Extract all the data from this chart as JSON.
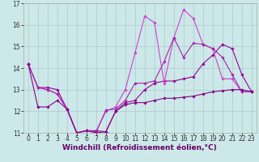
{
  "xlabel": "Windchill (Refroidissement éolien,°C)",
  "background_color": "#cce8e8",
  "grid_color": "#aacccc",
  "line_colors": [
    "#990099",
    "#cc44cc",
    "#aa22aa",
    "#880088"
  ],
  "xlim": [
    -0.5,
    23.5
  ],
  "ylim": [
    11,
    17
  ],
  "yticks": [
    11,
    12,
    13,
    14,
    15,
    16,
    17
  ],
  "xticks": [
    0,
    1,
    2,
    3,
    4,
    5,
    6,
    7,
    8,
    9,
    10,
    11,
    12,
    13,
    14,
    15,
    16,
    17,
    18,
    19,
    20,
    21,
    22,
    23
  ],
  "series": [
    {
      "x": [
        0,
        1,
        2,
        3,
        4,
        5,
        6,
        7,
        8,
        9,
        10,
        11,
        12,
        13,
        14,
        15,
        16,
        17,
        18,
        19,
        20,
        21,
        22,
        23
      ],
      "y": [
        14.2,
        13.1,
        13.1,
        13.0,
        12.1,
        11.0,
        11.1,
        11.1,
        11.05,
        12.0,
        12.4,
        12.5,
        13.0,
        13.3,
        13.4,
        13.4,
        13.5,
        13.6,
        14.2,
        14.6,
        15.1,
        14.9,
        13.7,
        12.9
      ]
    },
    {
      "x": [
        0,
        1,
        2,
        3,
        4,
        5,
        6,
        7,
        8,
        9,
        10,
        11,
        12,
        13,
        14,
        15,
        16,
        17,
        18,
        19,
        20,
        21,
        22,
        23
      ],
      "y": [
        14.2,
        13.1,
        13.0,
        12.8,
        12.1,
        11.0,
        11.1,
        11.05,
        12.0,
        12.2,
        13.0,
        14.7,
        16.4,
        16.1,
        13.3,
        15.4,
        16.7,
        16.3,
        15.1,
        14.9,
        13.5,
        13.5,
        12.9,
        12.9
      ]
    },
    {
      "x": [
        0,
        1,
        2,
        3,
        4,
        5,
        6,
        7,
        8,
        9,
        10,
        11,
        12,
        13,
        14,
        15,
        16,
        17,
        18,
        19,
        20,
        21,
        22,
        23
      ],
      "y": [
        14.2,
        13.1,
        13.0,
        12.8,
        12.1,
        11.0,
        11.1,
        11.05,
        12.05,
        12.1,
        12.5,
        13.3,
        13.3,
        13.4,
        14.3,
        15.4,
        14.5,
        15.15,
        15.1,
        14.9,
        14.5,
        13.7,
        12.9,
        12.9
      ]
    },
    {
      "x": [
        0,
        1,
        2,
        3,
        4,
        5,
        6,
        7,
        8,
        9,
        10,
        11,
        12,
        13,
        14,
        15,
        16,
        17,
        18,
        19,
        20,
        21,
        22,
        23
      ],
      "y": [
        14.2,
        12.2,
        12.2,
        12.5,
        12.1,
        11.0,
        11.1,
        11.0,
        11.05,
        12.0,
        12.3,
        12.4,
        12.4,
        12.5,
        12.6,
        12.6,
        12.65,
        12.7,
        12.8,
        12.9,
        12.95,
        13.0,
        13.0,
        12.9
      ]
    }
  ],
  "marker": "D",
  "markersize": 1.8,
  "linewidth": 0.8,
  "xlabel_fontsize": 6.5,
  "tick_fontsize": 5.5
}
